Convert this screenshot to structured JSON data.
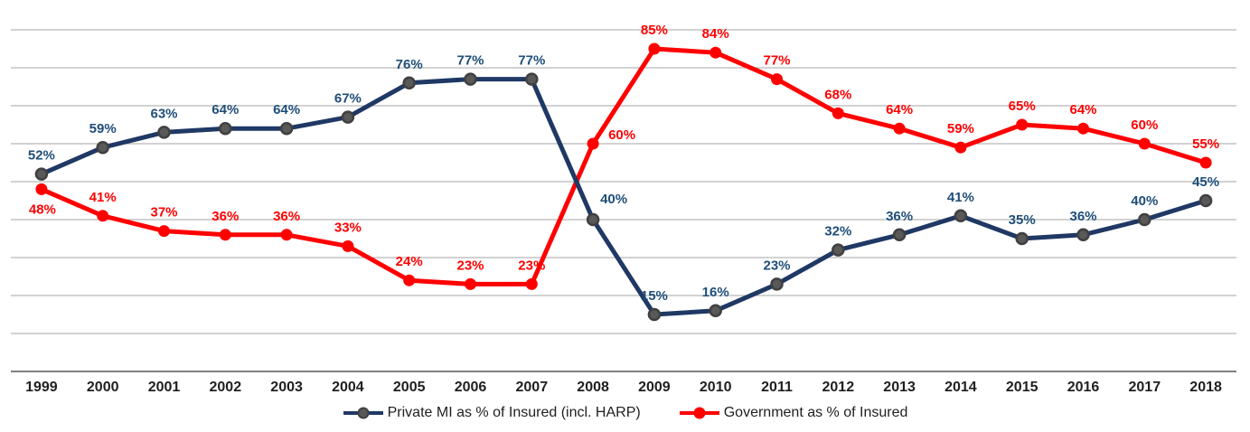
{
  "chart_data": {
    "type": "line",
    "title": "",
    "xlabel": "",
    "ylabel": "",
    "x": [
      "1999",
      "2000",
      "2001",
      "2002",
      "2003",
      "2004",
      "2005",
      "2006",
      "2007",
      "2008",
      "2009",
      "2010",
      "2011",
      "2012",
      "2013",
      "2014",
      "2015",
      "2016",
      "2017",
      "2018"
    ],
    "series": [
      {
        "id": "private-mi",
        "name": "Private MI as % of Insured (incl. HARP)",
        "color": "#1f3864",
        "label_color": "#1f4e79",
        "marker": {
          "fill": "#595959",
          "stroke": "#404040"
        },
        "values": [
          52,
          59,
          63,
          64,
          64,
          67,
          76,
          77,
          77,
          40,
          15,
          16,
          23,
          32,
          36,
          41,
          35,
          36,
          40,
          45
        ]
      },
      {
        "id": "government",
        "name": "Government as % of Insured",
        "color": "#ff0000",
        "label_color": "#ff0000",
        "marker": {
          "fill": "#ff0000",
          "stroke": "#ff0000"
        },
        "values": [
          48,
          41,
          37,
          36,
          36,
          33,
          24,
          23,
          23,
          60,
          85,
          84,
          77,
          68,
          64,
          59,
          65,
          64,
          60,
          55
        ]
      }
    ],
    "ylim": [
      0,
      100
    ],
    "gridline_values": [
      10,
      20,
      30,
      40,
      50,
      60,
      70,
      80,
      90
    ],
    "grid": "horizontal-only",
    "y_axis_labels_visible": false,
    "data_label_format": "{value}%",
    "legend_position": "bottom-center",
    "label_offsets": {
      "0": {
        "2008": {
          "dx": 23,
          "dy": -18
        }
      },
      "1": {
        "1999": {
          "dx": 1,
          "dy": 27
        },
        "2008": {
          "dx": 32,
          "dy": -5
        }
      }
    },
    "style": {
      "background": "#ffffff",
      "gridline_color": "#a6a6a6",
      "axis_color": "#808080",
      "tick_color": "#1f1f1f",
      "legend_text_color": "#1f1f1f"
    }
  }
}
